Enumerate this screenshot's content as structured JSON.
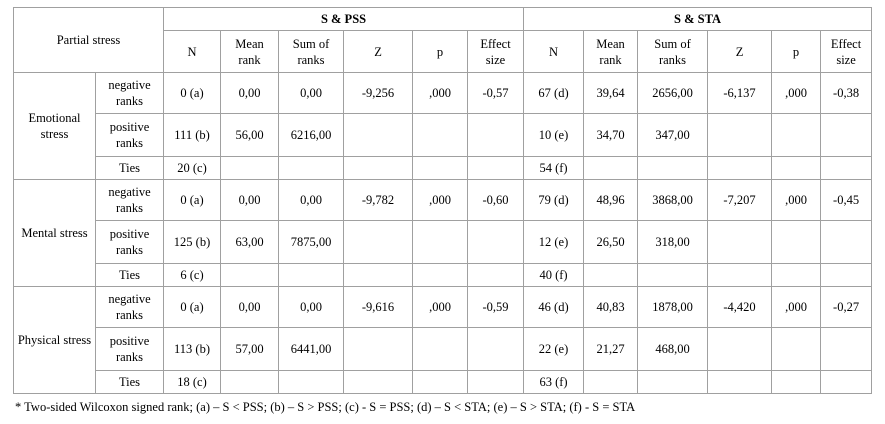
{
  "table": {
    "corner": "Partial stress",
    "groups": [
      "S & PSS",
      "S & STA"
    ],
    "columns": [
      "N",
      "Mean rank",
      "Sum of ranks",
      "Z",
      "p",
      "Effect size"
    ],
    "blocks": [
      {
        "label": "Emotional stress",
        "rows": [
          {
            "label": "negative ranks",
            "cells": [
              "0 (a)",
              "0,00",
              "0,00",
              "-9,256",
              ",000",
              "-0,57",
              "67 (d)",
              "39,64",
              "2656,00",
              "-6,137",
              ",000",
              "-0,38"
            ]
          },
          {
            "label": "positive ranks",
            "cells": [
              "111 (b)",
              "56,00",
              "6216,00",
              null,
              null,
              null,
              "10 (e)",
              "34,70",
              "347,00",
              null,
              null,
              null
            ]
          },
          {
            "label": "Ties",
            "cells": [
              "20 (c)",
              null,
              null,
              null,
              null,
              null,
              "54 (f)",
              null,
              null,
              null,
              null,
              null
            ]
          }
        ]
      },
      {
        "label": "Mental stress",
        "rows": [
          {
            "label": "negative ranks",
            "cells": [
              "0 (a)",
              "0,00",
              "0,00",
              "-9,782",
              ",000",
              "-0,60",
              "79 (d)",
              "48,96",
              "3868,00",
              "-7,207",
              ",000",
              "-0,45"
            ]
          },
          {
            "label": "positive ranks",
            "cells": [
              "125 (b)",
              "63,00",
              "7875,00",
              null,
              null,
              null,
              "12 (e)",
              "26,50",
              "318,00",
              null,
              null,
              null
            ]
          },
          {
            "label": "Ties",
            "cells": [
              "6 (c)",
              null,
              null,
              null,
              null,
              null,
              "40 (f)",
              null,
              null,
              null,
              null,
              null
            ]
          }
        ]
      },
      {
        "label": "Physical stress",
        "rows": [
          {
            "label": "negative ranks",
            "cells": [
              "0 (a)",
              "0,00",
              "0,00",
              "-9,616",
              ",000",
              "-0,59",
              "46 (d)",
              "40,83",
              "1878,00",
              "-4,420",
              ",000",
              "-0,27"
            ]
          },
          {
            "label": "positive ranks",
            "cells": [
              "113 (b)",
              "57,00",
              "6441,00",
              null,
              null,
              null,
              "22 (e)",
              "21,27",
              "468,00",
              null,
              null,
              null
            ]
          },
          {
            "label": "Ties",
            "cells": [
              "18 (c)",
              null,
              null,
              null,
              null,
              null,
              "63 (f)",
              null,
              null,
              null,
              null,
              null
            ]
          }
        ]
      }
    ]
  },
  "footnote": "* Two-sided Wilcoxon signed rank; (a) – S < PSS; (b) – S > PSS; (c) - S = PSS; (d) – S < STA; (e) – S > STA; (f) - S = STA"
}
